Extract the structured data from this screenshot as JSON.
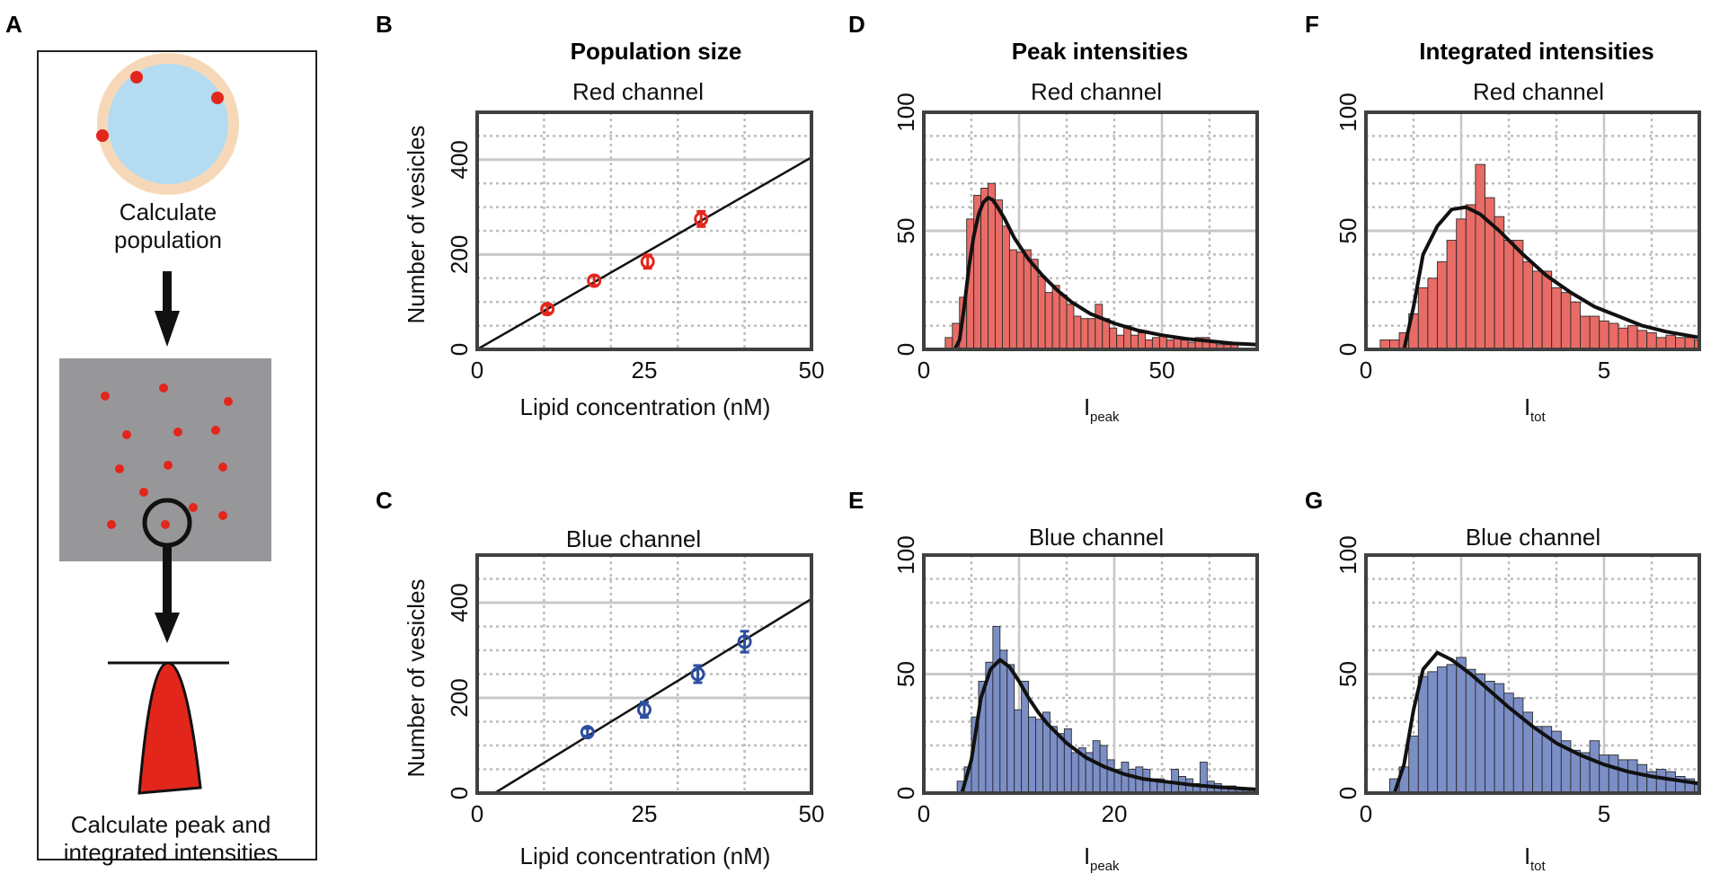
{
  "colors": {
    "red_fill": "#e86b66",
    "red_marker": "#e3261c",
    "blue_fill": "#7c8ec6",
    "blue_marker": "#2d4ea0",
    "axis": "#404040",
    "fit": "#111111",
    "grid_major": "#c8c8c8",
    "grid_minor": "#bdbdbd",
    "vesicle_core": "#b3dcf2",
    "vesicle_ring": "#f6d8b8",
    "image_bg": "#97979a",
    "peak": "#e3261c"
  },
  "panel_labels": {
    "a": "A",
    "b": "B",
    "c": "C",
    "d": "D",
    "e": "E",
    "f": "F",
    "g": "G"
  },
  "column_titles": {
    "population": "Population size",
    "peak": "Peak intensities",
    "integrated": "Integrated intensities"
  },
  "schematic": {
    "step1": [
      "Calculate",
      "population"
    ],
    "step2": [
      "Calculate peak and",
      "integrated intensities"
    ]
  },
  "chart_data": [
    {
      "id": "B",
      "type": "scatter",
      "title": "Red channel",
      "color": "red",
      "xlabel": "Lipid concentration (nM)",
      "ylabel": "Number of vesicles",
      "xlim": [
        0,
        50
      ],
      "ylim": [
        0,
        500
      ],
      "xticks": [
        0,
        25,
        50
      ],
      "yticks": [
        0,
        200,
        400
      ],
      "x_major_grid": [
        10,
        20,
        30,
        40
      ],
      "y_major_grid": [
        200,
        400
      ],
      "y_minor_grid": [
        50,
        100,
        150,
        250,
        300,
        350,
        450
      ],
      "points": [
        {
          "x": 10.5,
          "y": 85,
          "err": 8
        },
        {
          "x": 17.5,
          "y": 145,
          "err": 10
        },
        {
          "x": 25.5,
          "y": 185,
          "err": 14
        },
        {
          "x": 33.5,
          "y": 275,
          "err": 16
        }
      ],
      "fit_line": {
        "x": [
          0,
          50
        ],
        "y": [
          0,
          405
        ]
      }
    },
    {
      "id": "C",
      "type": "scatter",
      "title": "Blue channel",
      "color": "blue",
      "xlabel": "Lipid concentration (nM)",
      "ylabel": "Number of vesicles",
      "xlim": [
        0,
        50
      ],
      "ylim": [
        0,
        500
      ],
      "xticks": [
        0,
        25,
        50
      ],
      "yticks": [
        0,
        200,
        400
      ],
      "x_major_grid": [
        10,
        20,
        30,
        40
      ],
      "y_major_grid": [
        200,
        400
      ],
      "y_minor_grid": [
        50,
        100,
        150,
        250,
        300,
        350,
        450
      ],
      "points": [
        {
          "x": 16.5,
          "y": 128,
          "err": 8
        },
        {
          "x": 25,
          "y": 175,
          "err": 16
        },
        {
          "x": 33,
          "y": 250,
          "err": 18
        },
        {
          "x": 40,
          "y": 318,
          "err": 22
        }
      ],
      "fit_line": {
        "x": [
          2.6,
          50
        ],
        "y": [
          0,
          408
        ]
      }
    },
    {
      "id": "D",
      "type": "bar",
      "title": "Red channel",
      "color": "red",
      "xlabel": "I",
      "xlabel_sub": "peak",
      "xlim": [
        0,
        70
      ],
      "ylim": [
        0,
        100
      ],
      "xticks": [
        0,
        50
      ],
      "yticks": [
        0,
        50,
        100
      ],
      "x_major_grid": [
        20,
        50
      ],
      "x_minor_grid": [
        10,
        30,
        40,
        60
      ],
      "y_major_grid": [
        50
      ],
      "y_minor_grid": [
        10,
        20,
        30,
        40,
        60,
        70,
        80,
        90
      ],
      "bin_start": 4.5,
      "bin_width": 1.5,
      "values": [
        5,
        11,
        22,
        55,
        65,
        68,
        70,
        63,
        52,
        42,
        41,
        42,
        38,
        31,
        24,
        27,
        23,
        19,
        14,
        13,
        13,
        19,
        13,
        9,
        6,
        10,
        6,
        7,
        4,
        5,
        6,
        4,
        5,
        4,
        3,
        5,
        5,
        3,
        2,
        2,
        2
      ],
      "fit": [
        [
          6.5,
          0
        ],
        [
          7.5,
          4
        ],
        [
          8.5,
          18
        ],
        [
          9.5,
          35
        ],
        [
          10.5,
          48
        ],
        [
          11.5,
          57
        ],
        [
          12.5,
          62
        ],
        [
          13.5,
          64
        ],
        [
          14.5,
          63
        ],
        [
          15.5,
          60
        ],
        [
          17,
          55
        ],
        [
          19,
          47
        ],
        [
          22,
          38
        ],
        [
          25,
          31
        ],
        [
          28,
          25
        ],
        [
          31,
          20
        ],
        [
          35,
          15
        ],
        [
          40,
          11
        ],
        [
          45,
          8
        ],
        [
          50,
          6
        ],
        [
          55,
          4.5
        ],
        [
          60,
          3.5
        ],
        [
          65,
          2.5
        ],
        [
          70,
          2
        ]
      ]
    },
    {
      "id": "E",
      "type": "bar",
      "title": "Blue channel",
      "color": "blue",
      "xlabel": "I",
      "xlabel_sub": "peak",
      "xlim": [
        0,
        35
      ],
      "ylim": [
        0,
        100
      ],
      "xticks": [
        0,
        20
      ],
      "yticks": [
        0,
        50,
        100
      ],
      "x_major_grid": [
        10,
        20
      ],
      "x_minor_grid": [
        5,
        15,
        25,
        30
      ],
      "y_major_grid": [
        50
      ],
      "y_minor_grid": [
        10,
        20,
        30,
        40,
        60,
        70,
        80,
        90
      ],
      "bin_start": 3.5,
      "bin_width": 0.75,
      "values": [
        5,
        11,
        32,
        47,
        55,
        70,
        60,
        54,
        35,
        47,
        32,
        31,
        34,
        28,
        25,
        27,
        17,
        19,
        17,
        22,
        20,
        14,
        10,
        13,
        10,
        11,
        10,
        6,
        6,
        5,
        10,
        7,
        6,
        4,
        13,
        5,
        4,
        3,
        3,
        2,
        2
      ],
      "fit": [
        [
          4,
          0
        ],
        [
          5,
          14
        ],
        [
          6,
          40
        ],
        [
          7,
          52
        ],
        [
          8,
          56
        ],
        [
          9,
          53
        ],
        [
          10,
          47
        ],
        [
          11,
          40
        ],
        [
          12,
          34
        ],
        [
          13,
          29
        ],
        [
          15,
          21
        ],
        [
          17,
          15
        ],
        [
          19,
          11
        ],
        [
          21,
          8
        ],
        [
          23,
          6
        ],
        [
          25,
          5
        ],
        [
          28,
          3.5
        ],
        [
          31,
          2.5
        ],
        [
          35,
          1.5
        ]
      ]
    },
    {
      "id": "F",
      "type": "bar",
      "title": "Red channel",
      "color": "red",
      "xlabel": "I",
      "xlabel_sub": "tot",
      "xlim": [
        0,
        7
      ],
      "ylim": [
        0,
        100
      ],
      "xticks": [
        0,
        5
      ],
      "yticks": [
        0,
        50,
        100
      ],
      "x_major_grid": [
        2,
        5
      ],
      "x_minor_grid": [
        1,
        3,
        4,
        6
      ],
      "y_major_grid": [
        50
      ],
      "y_minor_grid": [
        10,
        20,
        30,
        40,
        60,
        70,
        80,
        90
      ],
      "bin_start": 0.3,
      "bin_width": 0.2,
      "values": [
        4,
        4,
        7,
        15,
        26,
        30,
        37,
        46,
        55,
        61,
        78,
        64,
        56,
        46,
        46,
        37,
        33,
        33,
        26,
        24,
        20,
        14,
        14,
        12,
        11,
        9,
        10,
        8,
        7,
        5,
        6,
        5,
        5,
        4
      ],
      "fit": [
        [
          0.8,
          0
        ],
        [
          1.0,
          18
        ],
        [
          1.2,
          40
        ],
        [
          1.5,
          52
        ],
        [
          1.8,
          59
        ],
        [
          2.1,
          60
        ],
        [
          2.4,
          57
        ],
        [
          2.8,
          50
        ],
        [
          3.3,
          40
        ],
        [
          3.8,
          31
        ],
        [
          4.3,
          24
        ],
        [
          4.8,
          18
        ],
        [
          5.3,
          14
        ],
        [
          5.8,
          10
        ],
        [
          6.3,
          7.5
        ],
        [
          7.0,
          5
        ]
      ]
    },
    {
      "id": "G",
      "type": "bar",
      "title": "Blue channel",
      "color": "blue",
      "xlabel": "I",
      "xlabel_sub": "tot",
      "xlim": [
        0,
        7
      ],
      "ylim": [
        0,
        100
      ],
      "xticks": [
        0,
        5
      ],
      "yticks": [
        0,
        50,
        100
      ],
      "x_major_grid": [
        2,
        5
      ],
      "x_minor_grid": [
        1,
        3,
        4,
        6
      ],
      "y_major_grid": [
        50
      ],
      "y_minor_grid": [
        10,
        20,
        30,
        40,
        60,
        70,
        80,
        90
      ],
      "bin_start": 0.5,
      "bin_width": 0.2,
      "values": [
        6,
        11,
        24,
        49,
        51,
        53,
        54,
        57,
        52,
        50,
        47,
        46,
        42,
        40,
        34,
        28,
        28,
        26,
        22,
        18,
        17,
        22,
        16,
        16,
        14,
        14,
        12,
        9,
        10,
        9,
        7,
        6,
        4
      ],
      "fit": [
        [
          0.6,
          0
        ],
        [
          0.8,
          12
        ],
        [
          1.0,
          35
        ],
        [
          1.2,
          52
        ],
        [
          1.5,
          59
        ],
        [
          1.8,
          56
        ],
        [
          2.2,
          50
        ],
        [
          2.6,
          43
        ],
        [
          3.0,
          36
        ],
        [
          3.5,
          28
        ],
        [
          4.0,
          21
        ],
        [
          4.5,
          16
        ],
        [
          5.0,
          12
        ],
        [
          5.5,
          9
        ],
        [
          6.0,
          7
        ],
        [
          7.0,
          4
        ]
      ]
    }
  ]
}
